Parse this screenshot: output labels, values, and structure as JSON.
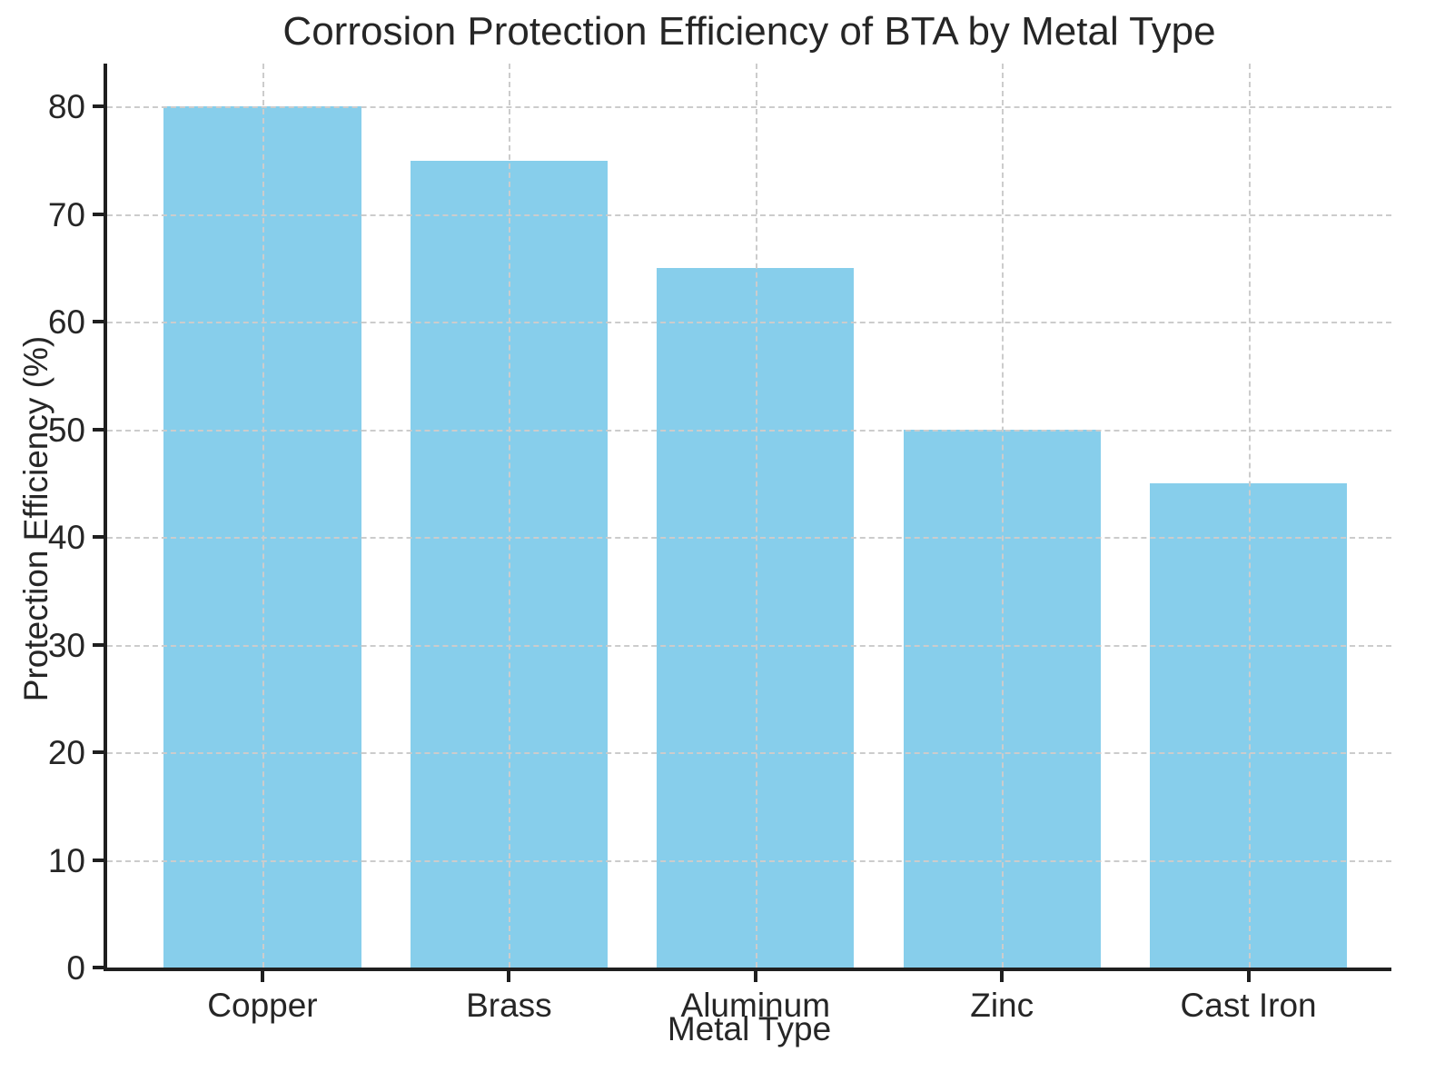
{
  "chart_data": {
    "type": "bar",
    "title": "Corrosion Protection Efficiency of BTA by Metal Type",
    "xlabel": "Metal Type",
    "ylabel": "Protection Efficiency (%)",
    "categories": [
      "Copper",
      "Brass",
      "Aluminum",
      "Zinc",
      "Cast Iron"
    ],
    "values": [
      80,
      75,
      65,
      50,
      45
    ],
    "yticks": [
      0,
      10,
      20,
      30,
      40,
      50,
      60,
      70,
      80
    ],
    "ylim": [
      0,
      84
    ],
    "bar_color": "#87CEEB",
    "grid": "dashed",
    "grid_color": "#cccccc",
    "axis_color": "#1f1f1f",
    "text_color": "#262626",
    "legend_position": "none",
    "background_color": "#ffffff"
  }
}
